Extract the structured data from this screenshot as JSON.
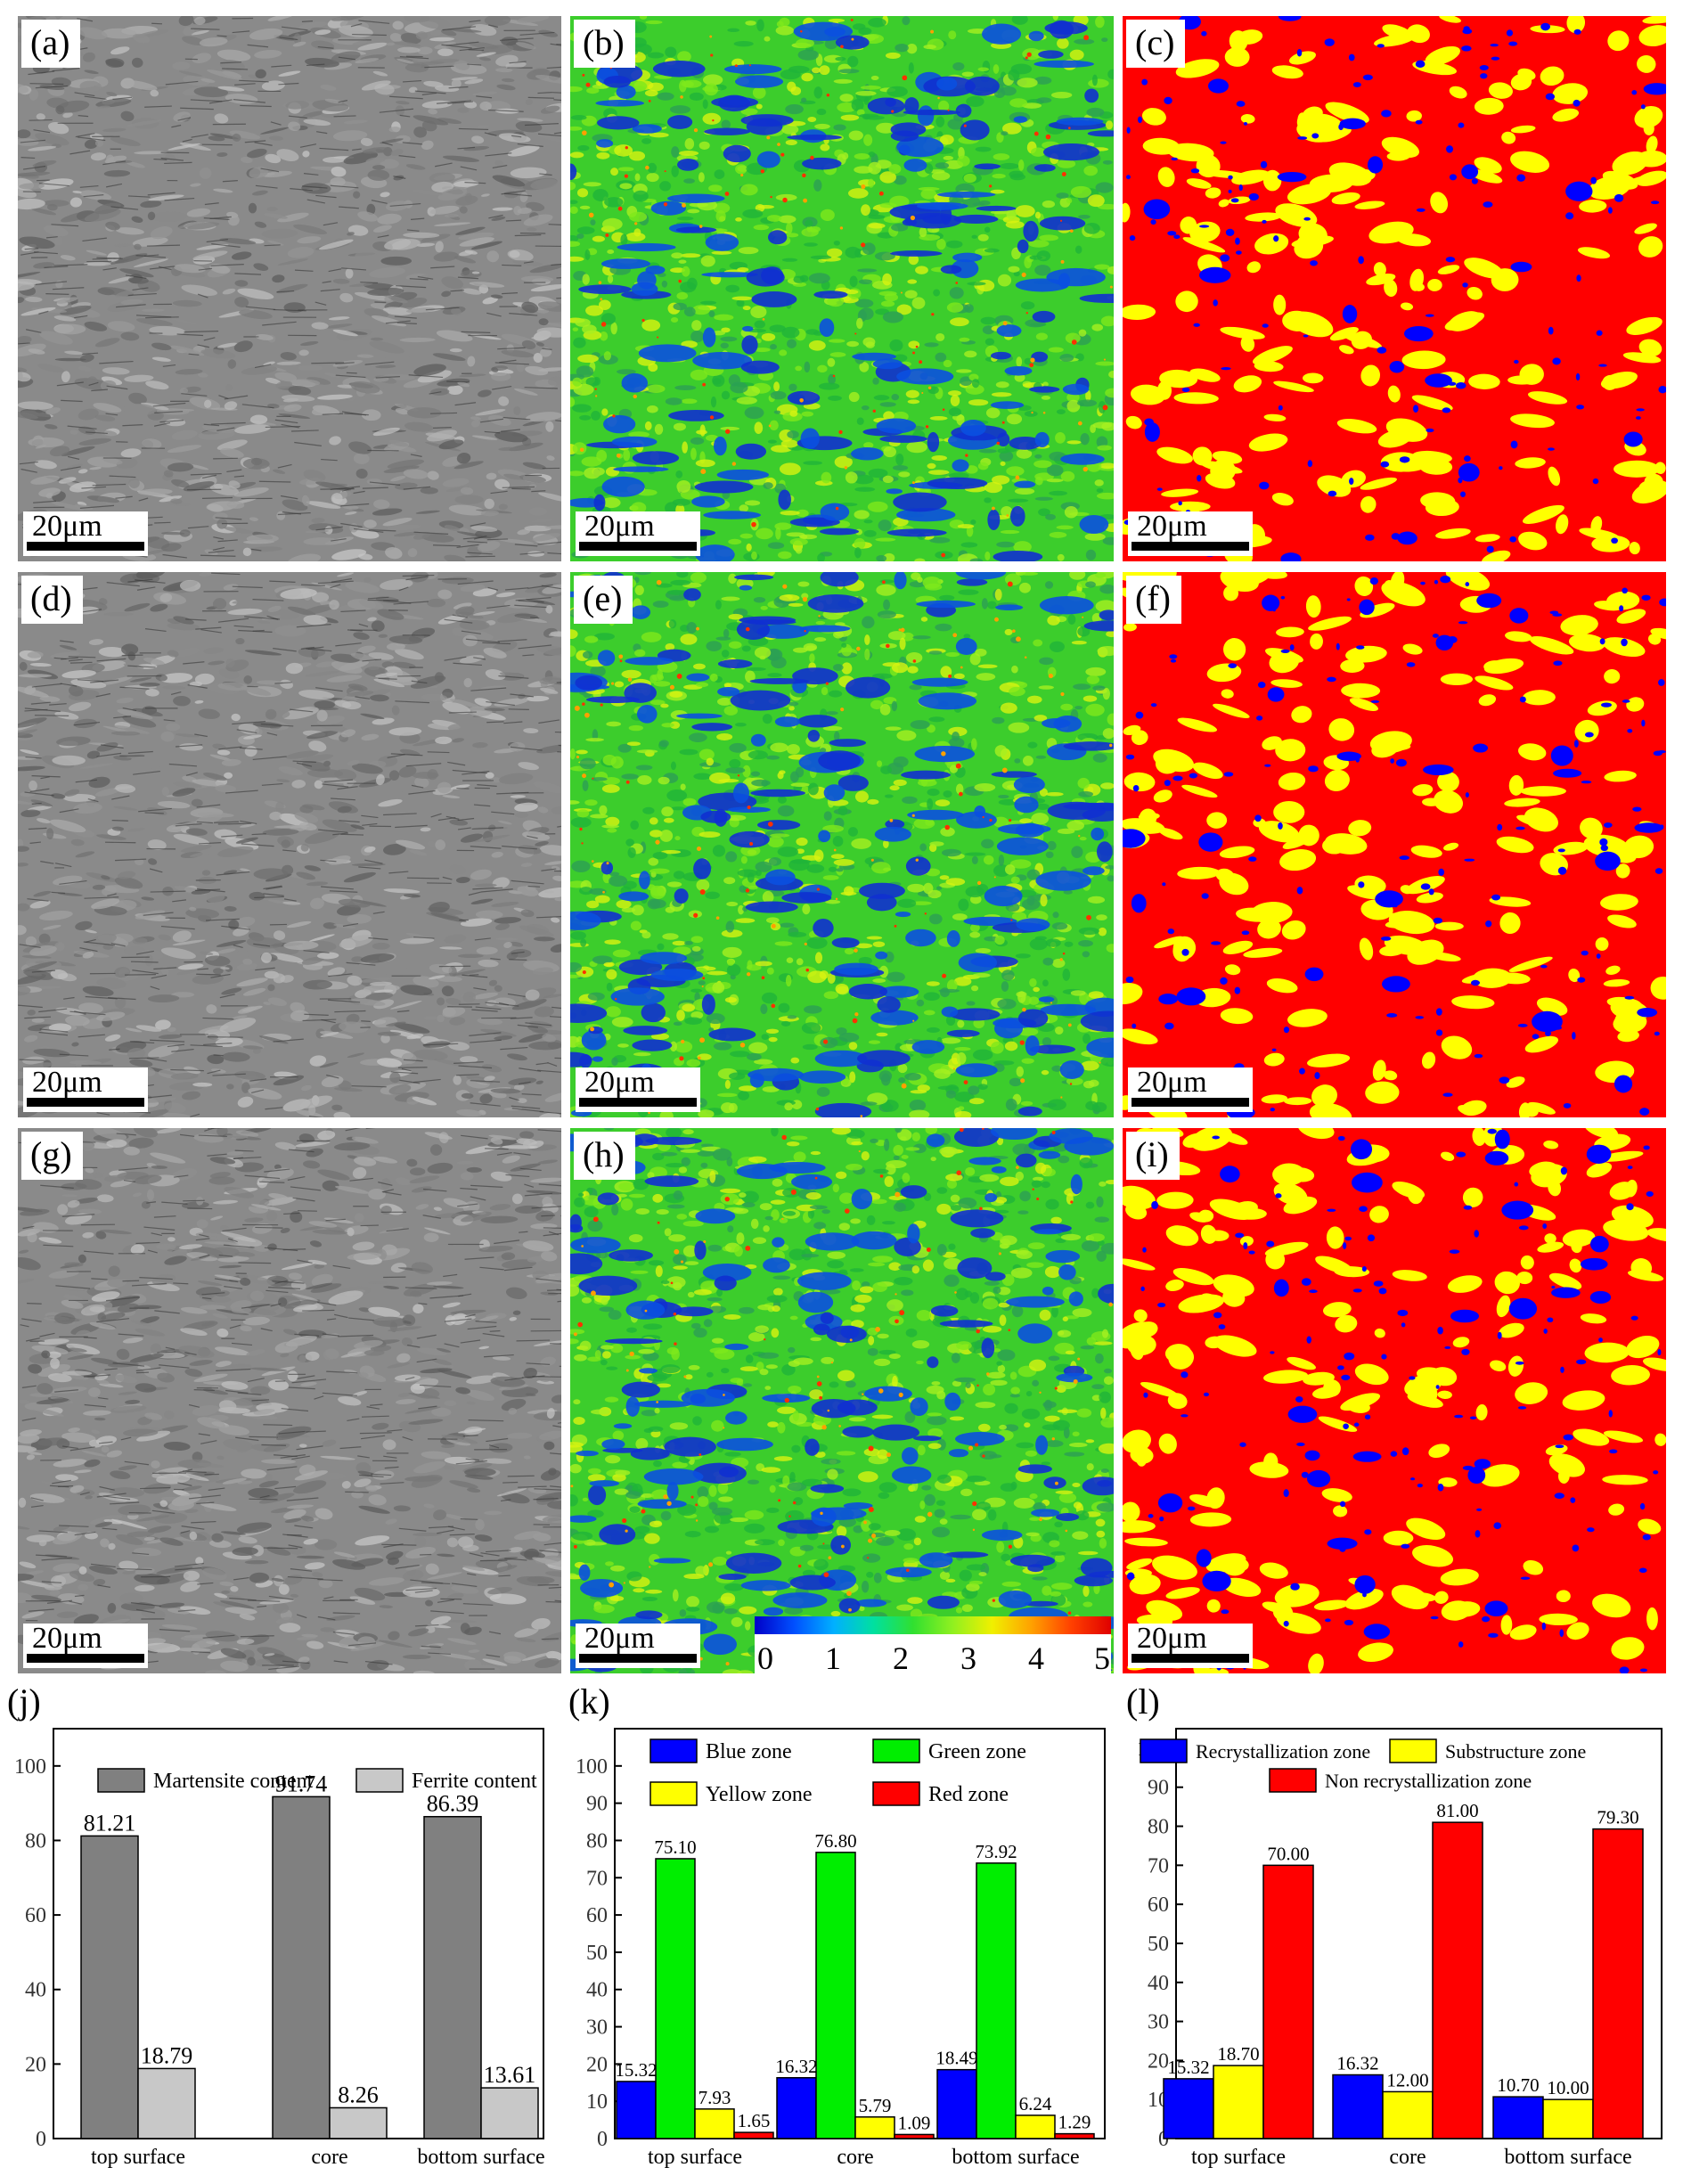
{
  "panels": [
    {
      "label": "(a)",
      "type": "sem",
      "scale": "20μm"
    },
    {
      "label": "(b)",
      "type": "kam",
      "scale": "20μm"
    },
    {
      "label": "(c)",
      "type": "gos",
      "scale": "20μm"
    },
    {
      "label": "(d)",
      "type": "sem",
      "scale": "20μm"
    },
    {
      "label": "(e)",
      "type": "kam",
      "scale": "20μm"
    },
    {
      "label": "(f)",
      "type": "gos",
      "scale": "20μm"
    },
    {
      "label": "(g)",
      "type": "sem",
      "scale": "20μm"
    },
    {
      "label": "(h)",
      "type": "kam",
      "scale": "20μm"
    },
    {
      "label": "(i)",
      "type": "gos",
      "scale": "20μm"
    }
  ],
  "colorbar": {
    "ticks": [
      "0",
      "1",
      "2",
      "3",
      "4",
      "5"
    ]
  },
  "colors": {
    "martensite": "#808080",
    "ferrite": "#c8c8c8",
    "blue": "#0000ff",
    "green": "#00ee00",
    "yellow": "#ffff00",
    "red": "#ff0000"
  },
  "chart_data": [
    {
      "label": "(j)",
      "type": "bar",
      "categories": [
        "top surface",
        "core",
        "bottom surface"
      ],
      "ylim": [
        0,
        110
      ],
      "yticks": [
        0,
        20,
        40,
        60,
        80,
        100
      ],
      "legend": [
        "Martensite content",
        "Ferrite content"
      ],
      "series": [
        {
          "name": "Martensite content",
          "values": [
            81.21,
            91.74,
            86.39
          ],
          "labels": [
            "81.21",
            "91.74",
            "86.39"
          ]
        },
        {
          "name": "Ferrite content",
          "values": [
            18.79,
            8.26,
            13.61
          ],
          "labels": [
            "18.79",
            "8.26",
            "13.61"
          ]
        }
      ]
    },
    {
      "label": "(k)",
      "type": "bar",
      "categories": [
        "top surface",
        "core",
        "bottom surface"
      ],
      "ylim": [
        0,
        110
      ],
      "yticks": [
        0,
        10,
        20,
        30,
        40,
        50,
        60,
        70,
        80,
        90,
        100
      ],
      "legend": [
        "Blue zone",
        "Green zone",
        "Yellow zone",
        "Red zone"
      ],
      "series": [
        {
          "name": "Blue zone",
          "values": [
            15.32,
            16.32,
            18.49
          ],
          "labels": [
            "15.32",
            "16.32",
            "18.49"
          ]
        },
        {
          "name": "Green zone",
          "values": [
            75.1,
            76.8,
            73.92
          ],
          "labels": [
            "75.10",
            "76.80",
            "73.92"
          ]
        },
        {
          "name": "Yellow zone",
          "values": [
            7.93,
            5.79,
            6.24
          ],
          "labels": [
            "7.93",
            "5.79",
            "6.24"
          ]
        },
        {
          "name": "Red zone",
          "values": [
            1.65,
            1.09,
            1.29
          ],
          "labels": [
            "1.65",
            "1.09",
            "1.29"
          ]
        }
      ]
    },
    {
      "label": "(l)",
      "type": "bar",
      "categories": [
        "top surface",
        "core",
        "bottom surface"
      ],
      "ylim": [
        0,
        105
      ],
      "yticks": [
        0,
        10,
        20,
        30,
        40,
        50,
        60,
        70,
        80,
        90,
        100
      ],
      "legend": [
        "Recrystallization zone",
        "Substructure zone",
        "Non recrystallization zone"
      ],
      "series": [
        {
          "name": "Recrystallization zone",
          "values": [
            15.32,
            16.32,
            10.7
          ],
          "labels": [
            "15.32",
            "16.32",
            "10.70"
          ]
        },
        {
          "name": "Substructure zone",
          "values": [
            18.7,
            12.0,
            10.0
          ],
          "labels": [
            "18.70",
            "12.00",
            "10.00"
          ]
        },
        {
          "name": "Non recrystallization zone",
          "values": [
            70.0,
            81.0,
            79.3
          ],
          "labels": [
            "70.00",
            "81.00",
            "79.30"
          ]
        }
      ]
    }
  ]
}
